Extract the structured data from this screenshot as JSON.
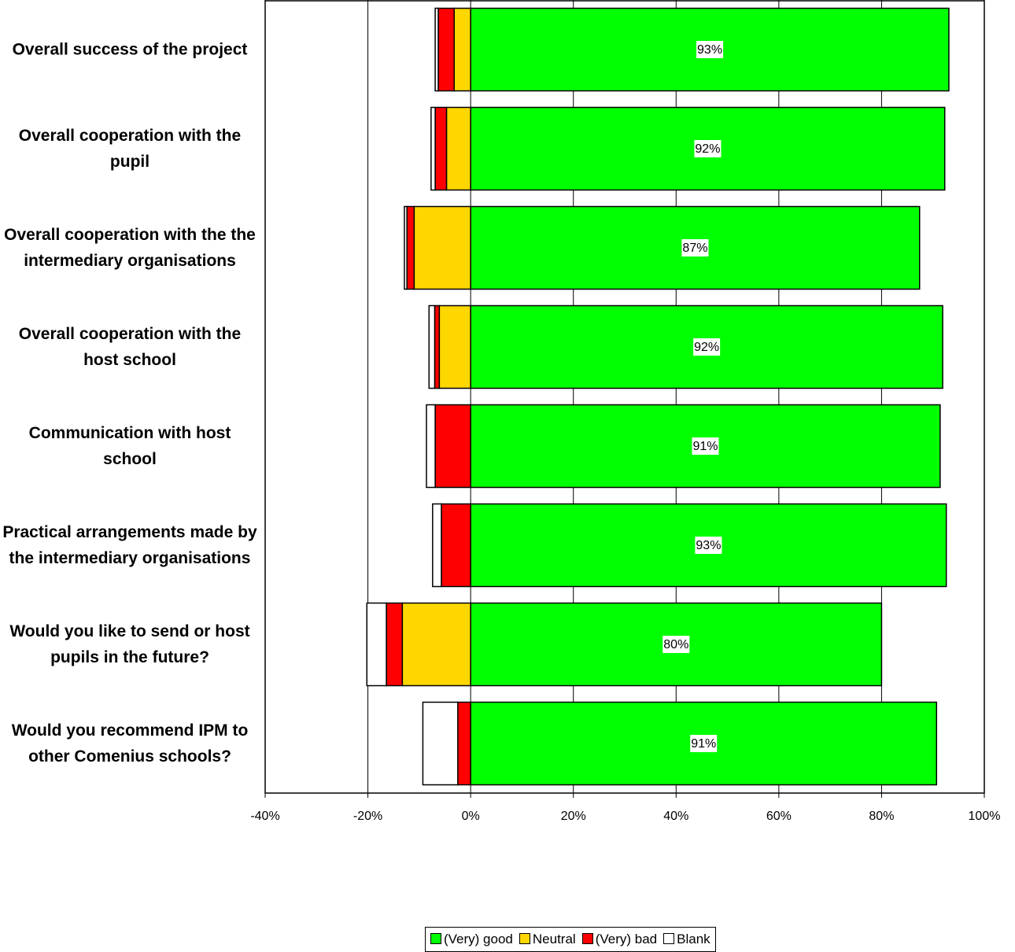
{
  "chart_data": {
    "type": "diverging-bar",
    "categories": [
      "Overall success of the project",
      "Overall cooperation with the pupil",
      "Overall cooperation with the the intermediary organisations",
      "Overall cooperation with the host school",
      "Communication with host school",
      "Practical arrangements made by the intermediary organisations",
      "Would you like to send or host pupils in the future?",
      "Would you recommend IPM to other Comenius schools?"
    ],
    "series": [
      {
        "name": "(Very) good",
        "color": "#00ff00",
        "values": [
          93.1,
          92.3,
          87.4,
          91.9,
          91.4,
          92.6,
          80.0,
          90.7
        ],
        "value_labels": [
          "93%",
          "92%",
          "87%",
          "92%",
          "91%",
          "93%",
          "80%",
          "91%"
        ]
      },
      {
        "name": "Neutral",
        "color": "#ffd700",
        "values": [
          -3.2,
          -4.7,
          -11.0,
          -6.1,
          0,
          0,
          -13.3,
          0
        ]
      },
      {
        "name": "(Very) bad",
        "color": "#ff0000",
        "values": [
          -3.1,
          -2.2,
          -1.4,
          -0.9,
          -6.9,
          -5.7,
          -3.1,
          -2.5
        ]
      },
      {
        "name": "Blank",
        "color": "#ffffff",
        "values": [
          -0.6,
          -0.8,
          -0.5,
          -1.1,
          -1.7,
          -1.7,
          -3.8,
          -6.8
        ]
      }
    ],
    "xlim": [
      -40,
      100
    ],
    "xticks": [
      {
        "value": -40,
        "label": "-40%"
      },
      {
        "value": -20,
        "label": "-20%"
      },
      {
        "value": 0,
        "label": "0%"
      },
      {
        "value": 20,
        "label": "20%"
      },
      {
        "value": 40,
        "label": "40%"
      },
      {
        "value": 60,
        "label": "60%"
      },
      {
        "value": 80,
        "label": "80%"
      },
      {
        "value": 100,
        "label": "100%"
      }
    ],
    "grid": true,
    "legend": "bottom"
  }
}
